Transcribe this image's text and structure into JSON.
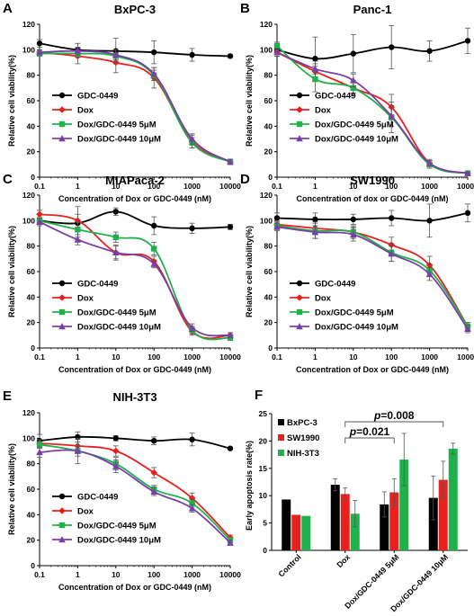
{
  "series_colors": {
    "GDC-0449": "#000000",
    "Dox": "#e8201e",
    "Dox/GDC-0449 5μM": "#1fb24a",
    "Dox/GDC-0449 10μM": "#7a3fa6"
  },
  "bar_colors": [
    "#000000",
    "#e8201e",
    "#1fb24a"
  ],
  "chart_data": [
    {
      "panel": "A",
      "type": "line",
      "title": "BxPC-3",
      "xlabel": "Concentration of Dox or GDC-0449 (nM)",
      "ylabel": "Relative cell viability(%)",
      "xscale": "log",
      "x_tick_labels": [
        "0.1",
        "1",
        "10",
        "100",
        "1000",
        "10000"
      ],
      "ylim": [
        0,
        120
      ],
      "y_tick_labels": [
        "0",
        "20",
        "40",
        "60",
        "80",
        "100",
        "120"
      ],
      "x": [
        0.1,
        1,
        10,
        100,
        1000,
        10000
      ],
      "legend_position": "bottom-left",
      "series": [
        {
          "name": "GDC-0449",
          "marker": "circle",
          "values": [
            105,
            100,
            99,
            98,
            96,
            95
          ],
          "errors": [
            3,
            5,
            10,
            9,
            5,
            1
          ]
        },
        {
          "name": "Dox",
          "marker": "diamond",
          "values": [
            98,
            95,
            90,
            78,
            28,
            12
          ],
          "errors": [
            2,
            6,
            8,
            8,
            5,
            2
          ]
        },
        {
          "name": "Dox/GDC-0449 5μM",
          "marker": "square",
          "values": [
            97,
            97,
            95,
            80,
            27,
            12
          ],
          "errors": [
            2,
            3,
            5,
            4,
            4,
            2
          ]
        },
        {
          "name": "Dox/GDC-0449 10μM",
          "marker": "triangle",
          "values": [
            98,
            99,
            96,
            81,
            30,
            12
          ],
          "errors": [
            2,
            3,
            4,
            5,
            4,
            2
          ]
        }
      ]
    },
    {
      "panel": "B",
      "type": "line",
      "title": "Panc-1",
      "xlabel": "Concentration of dox or GDC-0449 (nM)",
      "ylabel": "Relative cell viability(%)",
      "xscale": "log",
      "x_tick_labels": [
        "0.1",
        "1",
        "10",
        "100",
        "1000",
        "10000"
      ],
      "ylim": [
        0,
        120
      ],
      "y_tick_labels": [
        "0",
        "20",
        "40",
        "60",
        "80",
        "100",
        "120"
      ],
      "x": [
        0.1,
        1,
        10,
        100,
        1000,
        10000
      ],
      "legend_position": "bottom-left",
      "series": [
        {
          "name": "GDC-0449",
          "marker": "circle",
          "values": [
            100,
            93,
            97,
            102,
            99,
            107
          ],
          "errors": [
            5,
            17,
            15,
            17,
            8,
            10
          ]
        },
        {
          "name": "Dox",
          "marker": "diamond",
          "values": [
            98,
            83,
            70,
            55,
            11,
            3
          ],
          "errors": [
            3,
            8,
            4,
            10,
            3,
            1
          ]
        },
        {
          "name": "Dox/GDC-0449 5μM",
          "marker": "square",
          "values": [
            103,
            77,
            70,
            47,
            10,
            3
          ],
          "errors": [
            3,
            10,
            6,
            12,
            3,
            1
          ]
        },
        {
          "name": "Dox/GDC-0449 10μM",
          "marker": "triangle",
          "values": [
            98,
            85,
            76,
            48,
            11,
            3
          ],
          "errors": [
            3,
            4,
            5,
            8,
            2,
            1
          ]
        }
      ]
    },
    {
      "panel": "C",
      "type": "line",
      "title": "MIAPaca-2",
      "xlabel": "Concentration of Dox or GDC-0449 (nM)",
      "ylabel": "Relative cell viability(%)",
      "xscale": "log",
      "x_tick_labels": [
        "0.1",
        "1",
        "10",
        "100",
        "1000",
        "10000"
      ],
      "ylim": [
        0,
        120
      ],
      "y_tick_labels": [
        "0",
        "20",
        "40",
        "60",
        "80",
        "100",
        "120"
      ],
      "x": [
        0.1,
        1,
        10,
        100,
        1000,
        10000
      ],
      "legend_position": "bottom-left",
      "series": [
        {
          "name": "GDC-0449",
          "marker": "circle",
          "values": [
            100,
            98,
            107,
            96,
            94,
            95
          ],
          "errors": [
            3,
            13,
            3,
            7,
            4,
            2
          ]
        },
        {
          "name": "Dox",
          "marker": "diamond",
          "values": [
            105,
            100,
            75,
            68,
            13,
            10
          ],
          "errors": [
            3,
            5,
            6,
            4,
            3,
            2
          ]
        },
        {
          "name": "Dox/GDC-0449 5μM",
          "marker": "square",
          "values": [
            100,
            93,
            87,
            78,
            14,
            8
          ],
          "errors": [
            2,
            6,
            4,
            5,
            3,
            2
          ]
        },
        {
          "name": "Dox/GDC-0449 10μM",
          "marker": "triangle",
          "values": [
            99,
            85,
            75,
            66,
            16,
            10
          ],
          "errors": [
            3,
            4,
            5,
            3,
            3,
            2
          ]
        }
      ]
    },
    {
      "panel": "D",
      "type": "line",
      "title": "SW1990",
      "xlabel": "Concentration of Dox or GDC-0449 (nM)",
      "ylabel": "Relative cell viability(%)",
      "xscale": "log",
      "x_tick_labels": [
        "0.1",
        "1",
        "10",
        "100",
        "1000",
        "10000"
      ],
      "ylim": [
        0,
        120
      ],
      "y_tick_labels": [
        "0",
        "20",
        "40",
        "60",
        "80",
        "100",
        "120"
      ],
      "x": [
        0.1,
        1,
        10,
        100,
        1000,
        10000
      ],
      "legend_position": "bottom-left",
      "series": [
        {
          "name": "GDC-0449",
          "marker": "circle",
          "values": [
            102,
            101,
            101,
            102,
            100,
            106
          ],
          "errors": [
            4,
            5,
            4,
            6,
            13,
            7
          ]
        },
        {
          "name": "Dox",
          "marker": "diamond",
          "values": [
            97,
            94,
            91,
            81,
            65,
            17
          ],
          "errors": [
            3,
            5,
            5,
            6,
            7,
            3
          ]
        },
        {
          "name": "Dox/GDC-0449 5μM",
          "marker": "square",
          "values": [
            96,
            92,
            91,
            75,
            61,
            17
          ],
          "errors": [
            3,
            6,
            4,
            7,
            5,
            3
          ]
        },
        {
          "name": "Dox/GDC-0449 10μM",
          "marker": "triangle",
          "values": [
            95,
            91,
            89,
            74,
            58,
            15
          ],
          "errors": [
            3,
            5,
            5,
            6,
            5,
            3
          ]
        }
      ]
    },
    {
      "panel": "E",
      "type": "line",
      "title": "NIH-3T3",
      "xlabel": "Concentration of Dox or GDC-0449 (nM)",
      "ylabel": "Relative cell viability(%)",
      "xscale": "log",
      "x_tick_labels": [
        "0.1",
        "1",
        "10",
        "100",
        "1000",
        "10000"
      ],
      "ylim": [
        0,
        120
      ],
      "y_tick_labels": [
        "0",
        "20",
        "40",
        "60",
        "80",
        "100",
        "120"
      ],
      "x": [
        0.1,
        1,
        10,
        100,
        1000,
        10000
      ],
      "legend_position": "bottom-left",
      "series": [
        {
          "name": "GDC-0449",
          "marker": "circle",
          "values": [
            98,
            101,
            100,
            98,
            99,
            92
          ],
          "errors": [
            5,
            4,
            2,
            3,
            5,
            1
          ]
        },
        {
          "name": "Dox",
          "marker": "diamond",
          "values": [
            96,
            94,
            90,
            73,
            53,
            22
          ],
          "errors": [
            3,
            5,
            4,
            4,
            4,
            2
          ]
        },
        {
          "name": "Dox/GDC-0449 5μM",
          "marker": "square",
          "values": [
            95,
            90,
            80,
            60,
            49,
            20
          ],
          "errors": [
            3,
            10,
            5,
            3,
            3,
            2
          ]
        },
        {
          "name": "Dox/GDC-0449 10μM",
          "marker": "triangle",
          "values": [
            89,
            90,
            78,
            58,
            45,
            18
          ],
          "errors": [
            4,
            4,
            5,
            3,
            3,
            2
          ]
        }
      ]
    },
    {
      "panel": "F",
      "type": "bar",
      "title": "",
      "xlabel": "",
      "ylabel": "Early apoptosis rate(%)",
      "ylim": [
        0,
        25
      ],
      "y_tick_labels": [
        "0",
        "5",
        "10",
        "15",
        "20",
        "25"
      ],
      "categories": [
        "Control",
        "Dox",
        "Dox/GDC-0449 5μM",
        "Dox/GDC-0449 10μM"
      ],
      "legend_position": "top-left",
      "series": [
        {
          "name": "BxPC-3",
          "values": [
            9.3,
            12.0,
            8.4,
            9.6
          ],
          "errors": [
            0,
            1.1,
            2.3,
            4.0
          ]
        },
        {
          "name": "SW1990",
          "values": [
            6.5,
            10.3,
            10.6,
            12.9
          ],
          "errors": [
            0,
            1.1,
            2.5,
            3.4
          ]
        },
        {
          "name": "NIH-3T3",
          "values": [
            6.3,
            6.7,
            16.6,
            18.6
          ],
          "errors": [
            0,
            2.4,
            4.8,
            1.0
          ]
        }
      ],
      "annotations": [
        {
          "text": "p=0.021",
          "from": "Dox",
          "to": "Dox/GDC-0449 5μM"
        },
        {
          "text": "p=0.008",
          "from": "Dox",
          "to": "Dox/GDC-0449 10μM"
        }
      ]
    }
  ]
}
